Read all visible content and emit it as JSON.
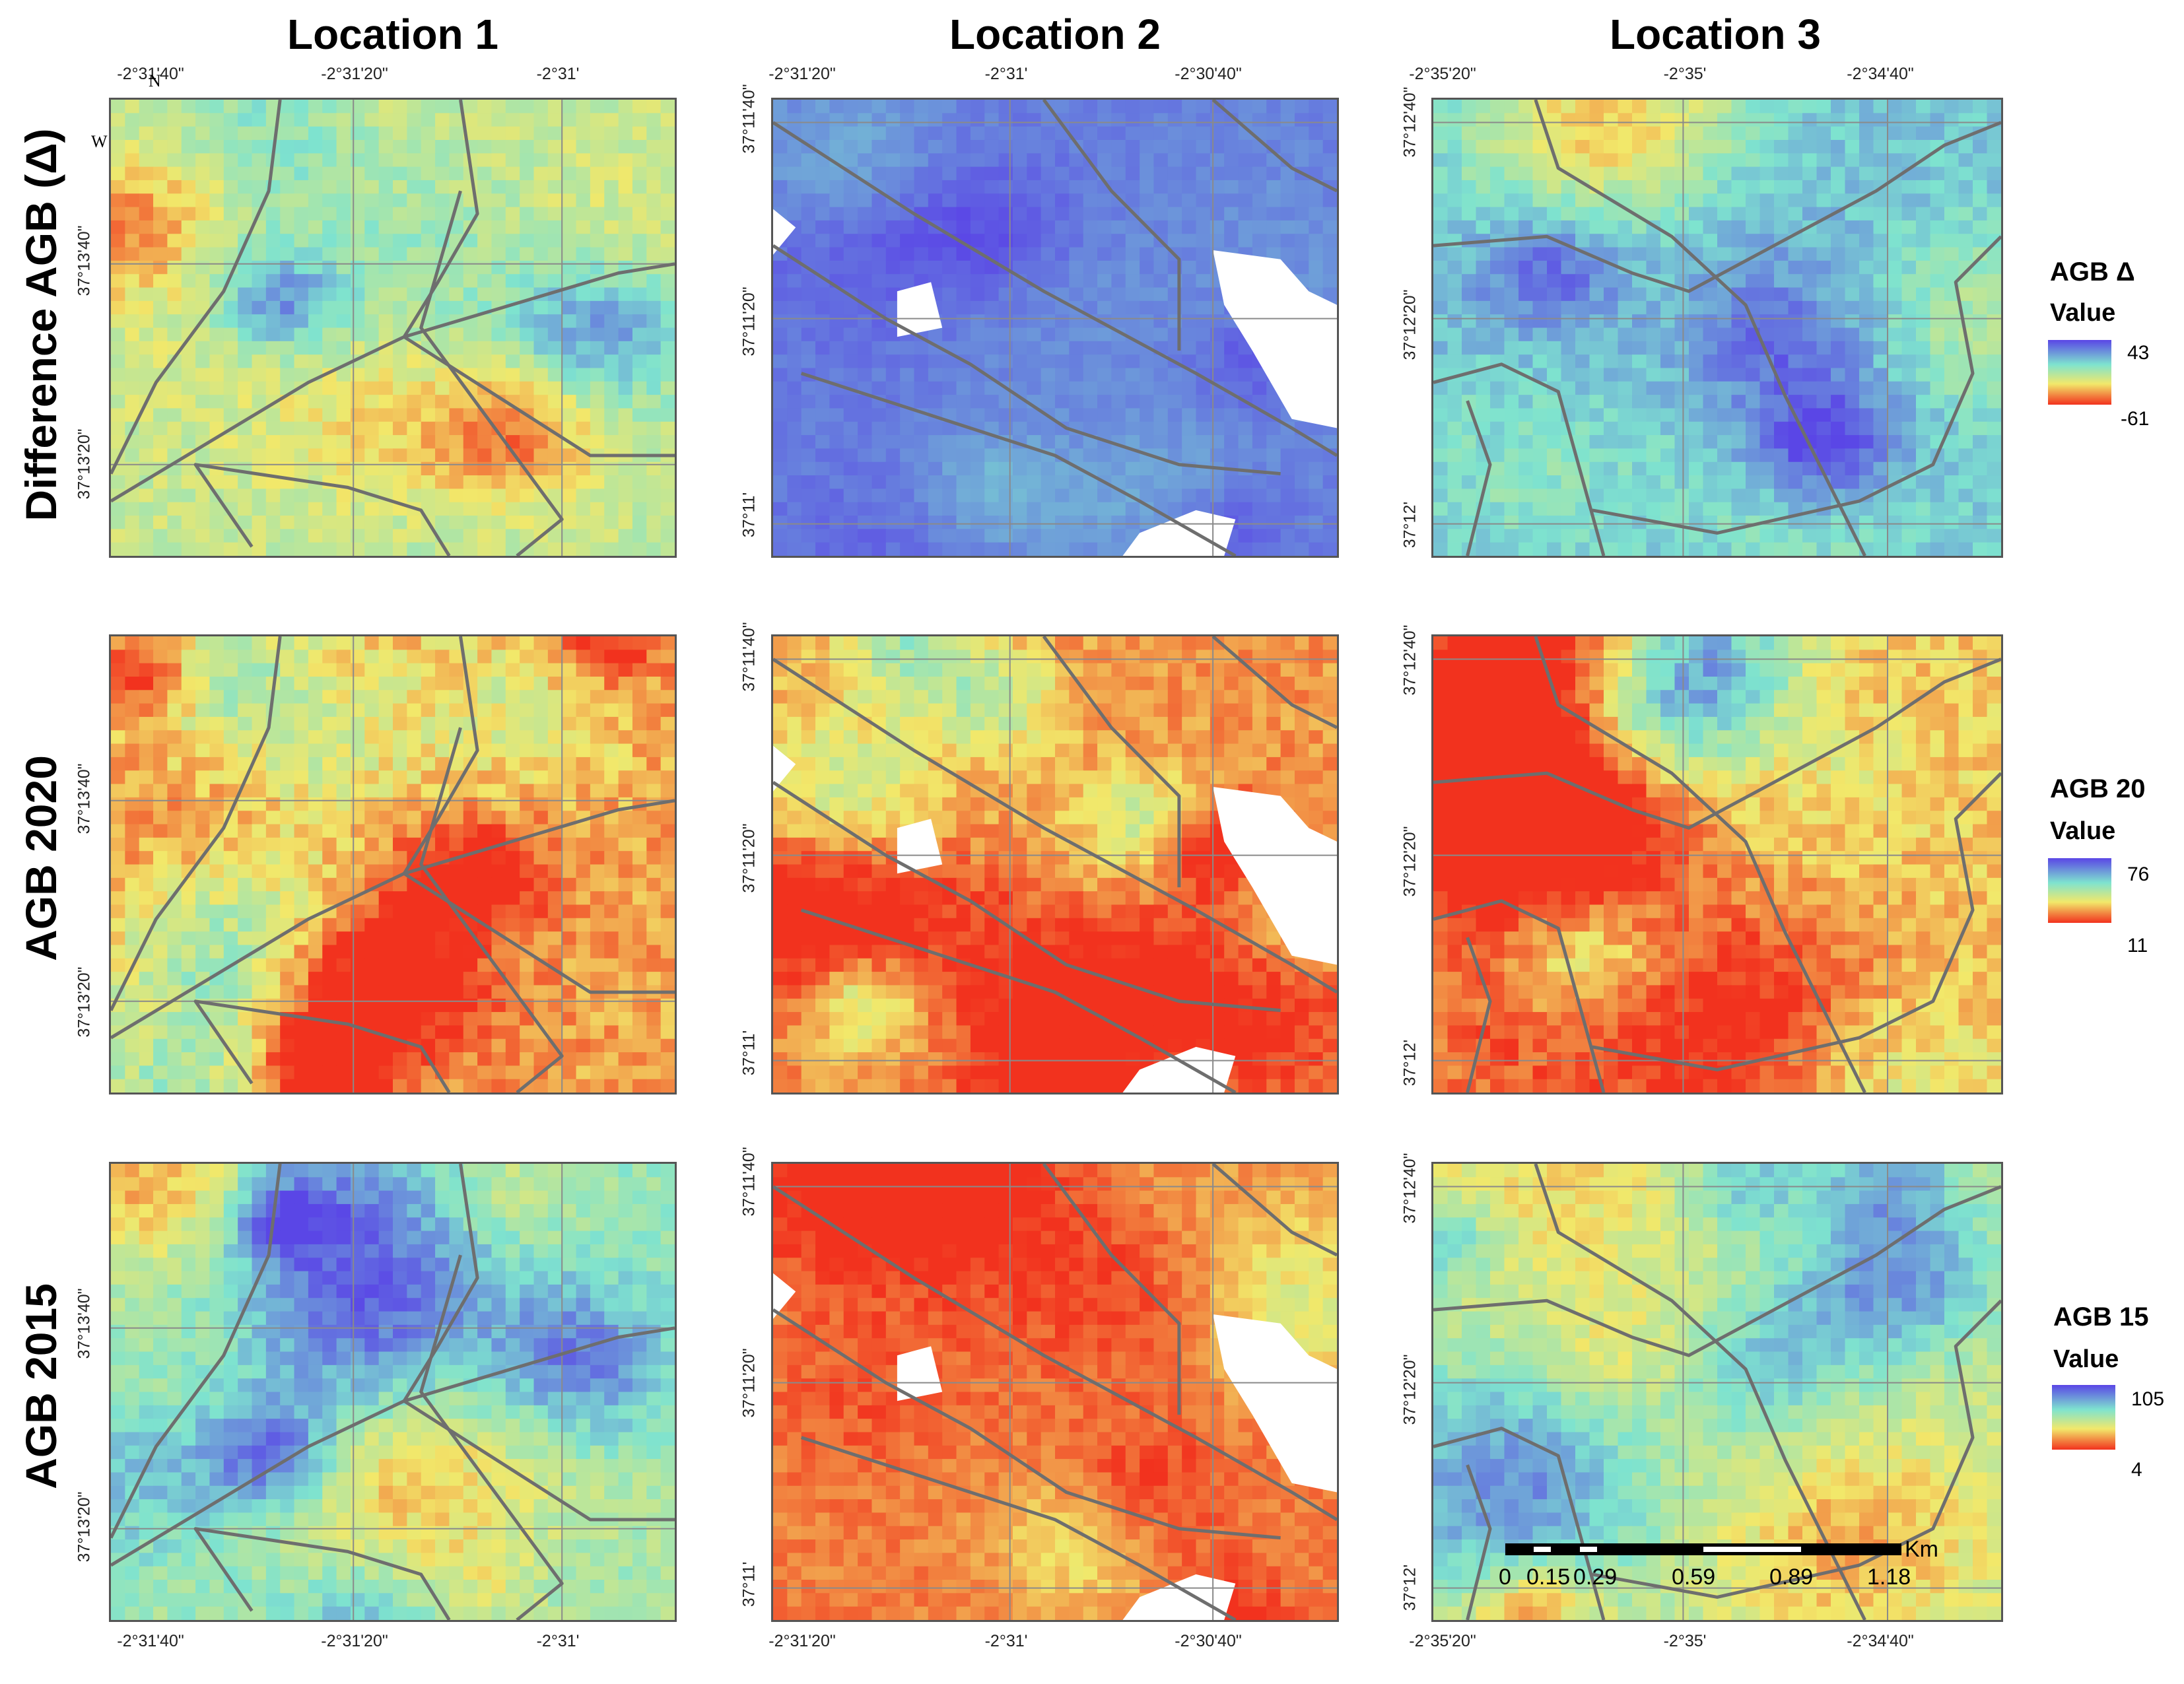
{
  "columns": [
    {
      "title": "Location 1"
    },
    {
      "title": "Location 2"
    },
    {
      "title": "Location 3"
    }
  ],
  "rows": [
    {
      "title": "Difference  AGB (Δ)"
    },
    {
      "title": "AGB 2020"
    },
    {
      "title": "AGB 2015"
    }
  ],
  "ticks": {
    "loc1": {
      "lon": [
        "-2°31'40\"",
        "-2°31'20\"",
        "-2°31'"
      ],
      "lat": [
        "37°13'40\"",
        "37°13'20\""
      ]
    },
    "loc2": {
      "lon": [
        "-2°31'20\"",
        "-2°31'",
        "-2°30'40\""
      ],
      "lat": [
        "37°11'40\"",
        "37°11'20\"",
        "37°11'"
      ]
    },
    "loc3": {
      "lon": [
        "-2°35'20\"",
        "-2°35'",
        "-2°34'40\""
      ],
      "lat": [
        "37°12'40\"",
        "37°12'20\"",
        "37°12'"
      ]
    }
  },
  "north_arrow": {
    "n": "N",
    "w": "W"
  },
  "legends": [
    {
      "title": "AGB Δ",
      "subtitle": "Value",
      "max": "43",
      "min": "-61"
    },
    {
      "title": "AGB 20",
      "subtitle": "Value",
      "max": "76",
      "min": "11"
    },
    {
      "title": "AGB 15",
      "subtitle": "Value",
      "max": "105",
      "min": "4"
    }
  ],
  "scale_bar": {
    "unit": "Km",
    "labels": [
      "0",
      "0.15",
      "0.29",
      "0.59",
      "0.89",
      "1.18"
    ]
  },
  "colors": {
    "ramp_high": "#5a46e6",
    "ramp_mid": "#7ee3cf",
    "ramp_mid2": "#f2e86a",
    "ramp_low": "#f2321e",
    "boundary": "#6e6e6e",
    "grid": "#8a8a8a"
  }
}
